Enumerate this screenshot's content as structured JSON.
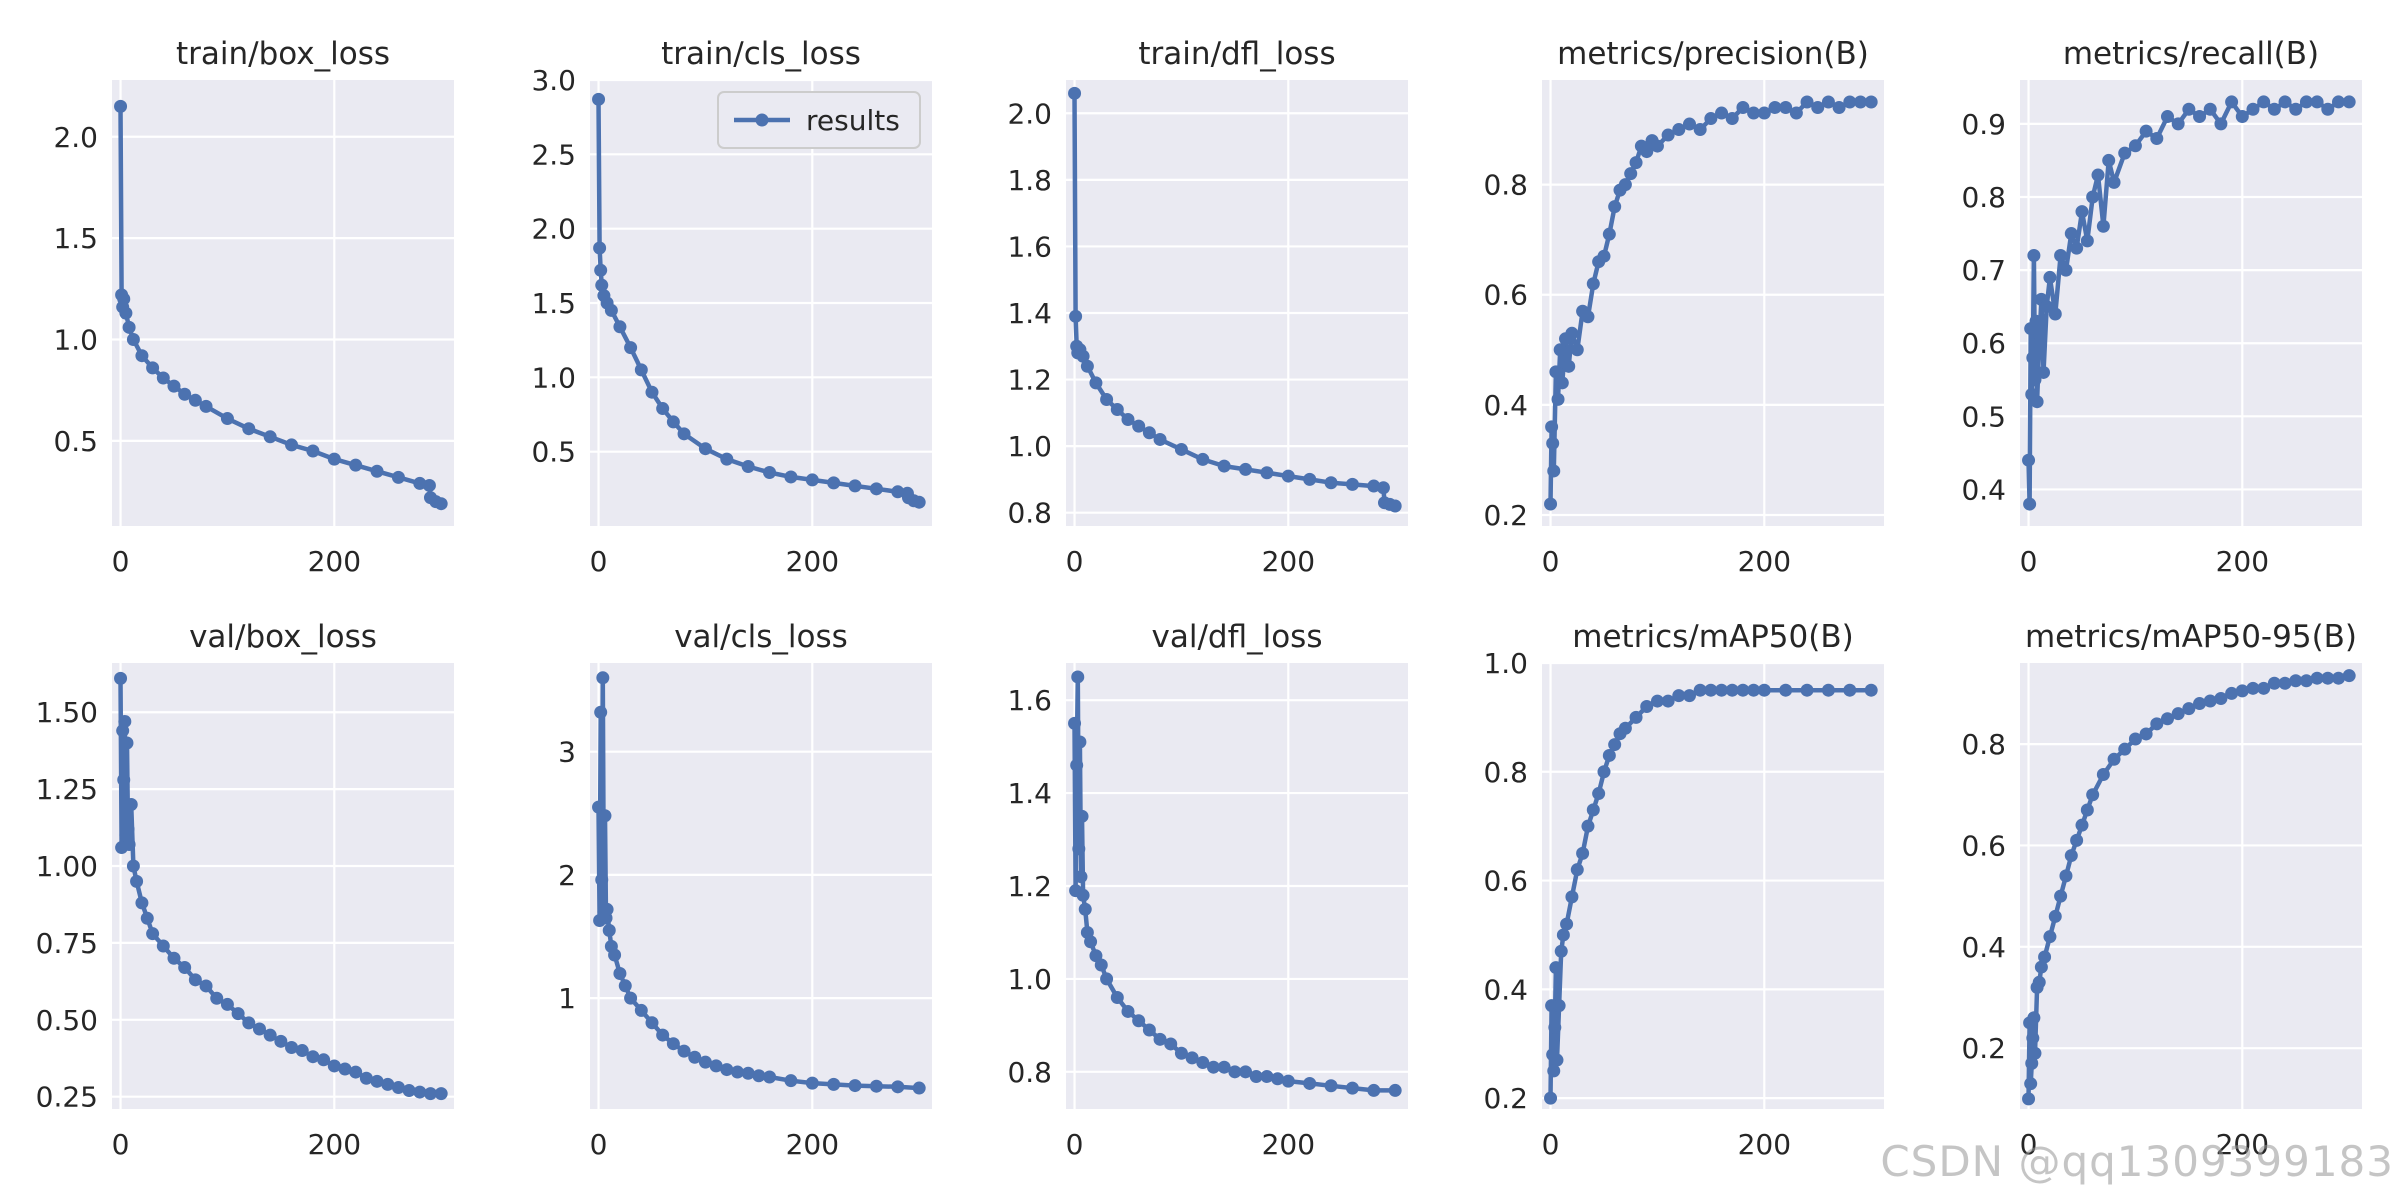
{
  "watermark": "CSDN @qq1309399183",
  "style": {
    "bg": "#EAEAF2",
    "grid": "#FFFFFF",
    "line": "#4C72B0",
    "text": "#262626"
  },
  "chart_data": [
    {
      "type": "line",
      "title": "train/box_loss",
      "legend": "",
      "xlim": [
        -8,
        312
      ],
      "ylim": [
        0.08,
        2.28
      ],
      "xticks": [
        0,
        200
      ],
      "yticks": [
        0.5,
        1.0,
        1.5,
        2.0
      ],
      "ytick_labels": [
        "0.5",
        "1.0",
        "1.5",
        "2.0"
      ],
      "series": [
        {
          "x": [
            0,
            1,
            2,
            3,
            5,
            8,
            12,
            20,
            30,
            40,
            50,
            60,
            70,
            80,
            100,
            120,
            140,
            160,
            180,
            200,
            220,
            240,
            260,
            280,
            289,
            290,
            295,
            300
          ],
          "y": [
            2.15,
            1.22,
            1.16,
            1.2,
            1.13,
            1.06,
            1.0,
            0.92,
            0.86,
            0.81,
            0.77,
            0.73,
            0.7,
            0.67,
            0.61,
            0.56,
            0.52,
            0.48,
            0.45,
            0.41,
            0.38,
            0.35,
            0.32,
            0.29,
            0.28,
            0.22,
            0.2,
            0.19
          ]
        }
      ]
    },
    {
      "type": "line",
      "title": "train/cls_loss",
      "legend": "results",
      "xlim": [
        -8,
        312
      ],
      "ylim": [
        0.0,
        3.0
      ],
      "xticks": [
        0,
        200
      ],
      "yticks": [
        0.5,
        1.0,
        1.5,
        2.0,
        2.5,
        3.0
      ],
      "ytick_labels": [
        "0.5",
        "1.0",
        "1.5",
        "2.0",
        "2.5",
        "3.0"
      ],
      "series": [
        {
          "x": [
            0,
            1,
            2,
            3,
            5,
            8,
            12,
            20,
            30,
            40,
            50,
            60,
            70,
            80,
            100,
            120,
            140,
            160,
            180,
            200,
            220,
            240,
            260,
            280,
            289,
            290,
            295,
            300
          ],
          "y": [
            2.87,
            1.87,
            1.72,
            1.62,
            1.55,
            1.5,
            1.45,
            1.34,
            1.2,
            1.05,
            0.9,
            0.79,
            0.7,
            0.62,
            0.52,
            0.45,
            0.4,
            0.36,
            0.33,
            0.31,
            0.29,
            0.27,
            0.25,
            0.23,
            0.22,
            0.19,
            0.17,
            0.16
          ]
        }
      ]
    },
    {
      "type": "line",
      "title": "train/dfl_loss",
      "legend": "",
      "xlim": [
        -8,
        312
      ],
      "ylim": [
        0.76,
        2.1
      ],
      "xticks": [
        0,
        200
      ],
      "yticks": [
        0.8,
        1.0,
        1.2,
        1.4,
        1.6,
        1.8,
        2.0
      ],
      "ytick_labels": [
        "0.8",
        "1.0",
        "1.2",
        "1.4",
        "1.6",
        "1.8",
        "2.0"
      ],
      "series": [
        {
          "x": [
            0,
            1,
            2,
            3,
            5,
            8,
            12,
            20,
            30,
            40,
            50,
            60,
            70,
            80,
            100,
            120,
            140,
            160,
            180,
            200,
            220,
            240,
            260,
            280,
            289,
            290,
            295,
            300
          ],
          "y": [
            2.06,
            1.39,
            1.3,
            1.28,
            1.29,
            1.27,
            1.24,
            1.19,
            1.14,
            1.11,
            1.08,
            1.06,
            1.04,
            1.02,
            0.99,
            0.96,
            0.94,
            0.93,
            0.92,
            0.91,
            0.9,
            0.89,
            0.885,
            0.88,
            0.875,
            0.83,
            0.825,
            0.82
          ]
        }
      ]
    },
    {
      "type": "line",
      "title": "metrics/precision(B)",
      "legend": "",
      "xlim": [
        -8,
        312
      ],
      "ylim": [
        0.18,
        0.99
      ],
      "xticks": [
        0,
        200
      ],
      "yticks": [
        0.2,
        0.4,
        0.6,
        0.8
      ],
      "ytick_labels": [
        "0.2",
        "0.4",
        "0.6",
        "0.8"
      ],
      "series": [
        {
          "x": [
            0,
            1,
            2,
            3,
            5,
            7,
            9,
            11,
            14,
            17,
            20,
            25,
            30,
            35,
            40,
            45,
            50,
            55,
            60,
            65,
            70,
            75,
            80,
            85,
            90,
            95,
            100,
            110,
            120,
            130,
            140,
            150,
            160,
            170,
            180,
            190,
            200,
            210,
            220,
            230,
            240,
            250,
            260,
            270,
            280,
            290,
            300
          ],
          "y": [
            0.22,
            0.36,
            0.33,
            0.28,
            0.46,
            0.41,
            0.5,
            0.44,
            0.52,
            0.47,
            0.53,
            0.5,
            0.57,
            0.56,
            0.62,
            0.66,
            0.67,
            0.71,
            0.76,
            0.79,
            0.8,
            0.82,
            0.84,
            0.87,
            0.86,
            0.88,
            0.87,
            0.89,
            0.9,
            0.91,
            0.9,
            0.92,
            0.93,
            0.92,
            0.94,
            0.93,
            0.93,
            0.94,
            0.94,
            0.93,
            0.95,
            0.94,
            0.95,
            0.94,
            0.95,
            0.95,
            0.95
          ]
        }
      ]
    },
    {
      "type": "line",
      "title": "metrics/recall(B)",
      "legend": "",
      "xlim": [
        -8,
        312
      ],
      "ylim": [
        0.35,
        0.96
      ],
      "xticks": [
        0,
        200
      ],
      "yticks": [
        0.4,
        0.5,
        0.6,
        0.7,
        0.8,
        0.9
      ],
      "ytick_labels": [
        "0.4",
        "0.5",
        "0.6",
        "0.7",
        "0.8",
        "0.9"
      ],
      "series": [
        {
          "x": [
            0,
            1,
            2,
            3,
            4,
            5,
            6,
            7,
            8,
            10,
            12,
            14,
            17,
            20,
            25,
            30,
            35,
            40,
            45,
            50,
            55,
            60,
            65,
            70,
            75,
            80,
            90,
            100,
            110,
            120,
            130,
            140,
            150,
            160,
            170,
            180,
            190,
            200,
            210,
            220,
            230,
            240,
            250,
            260,
            270,
            280,
            290,
            300
          ],
          "y": [
            0.44,
            0.38,
            0.62,
            0.53,
            0.58,
            0.72,
            0.55,
            0.63,
            0.52,
            0.6,
            0.66,
            0.56,
            0.65,
            0.69,
            0.64,
            0.72,
            0.7,
            0.75,
            0.73,
            0.78,
            0.74,
            0.8,
            0.83,
            0.76,
            0.85,
            0.82,
            0.86,
            0.87,
            0.89,
            0.88,
            0.91,
            0.9,
            0.92,
            0.91,
            0.92,
            0.9,
            0.93,
            0.91,
            0.92,
            0.93,
            0.92,
            0.93,
            0.92,
            0.93,
            0.93,
            0.92,
            0.93,
            0.93
          ]
        }
      ]
    },
    {
      "type": "line",
      "title": "val/box_loss",
      "legend": "",
      "xlim": [
        -8,
        312
      ],
      "ylim": [
        0.21,
        1.66
      ],
      "xticks": [
        0,
        200
      ],
      "yticks": [
        0.25,
        0.5,
        0.75,
        1.0,
        1.25,
        1.5
      ],
      "ytick_labels": [
        "0.25",
        "0.50",
        "0.75",
        "1.00",
        "1.25",
        "1.50"
      ],
      "series": [
        {
          "x": [
            0,
            1,
            2,
            3,
            4,
            5,
            6,
            7,
            8,
            10,
            12,
            15,
            20,
            25,
            30,
            40,
            50,
            60,
            70,
            80,
            90,
            100,
            110,
            120,
            130,
            140,
            150,
            160,
            170,
            180,
            190,
            200,
            210,
            220,
            230,
            240,
            250,
            260,
            270,
            280,
            290,
            300
          ],
          "y": [
            1.61,
            1.06,
            1.44,
            1.28,
            1.47,
            1.1,
            1.4,
            1.12,
            1.07,
            1.2,
            1.0,
            0.95,
            0.88,
            0.83,
            0.78,
            0.74,
            0.7,
            0.67,
            0.63,
            0.61,
            0.57,
            0.55,
            0.52,
            0.49,
            0.47,
            0.45,
            0.43,
            0.41,
            0.4,
            0.38,
            0.37,
            0.35,
            0.34,
            0.33,
            0.31,
            0.3,
            0.29,
            0.28,
            0.27,
            0.265,
            0.26,
            0.26
          ]
        }
      ]
    },
    {
      "type": "line",
      "title": "val/cls_loss",
      "legend": "",
      "xlim": [
        -8,
        312
      ],
      "ylim": [
        0.1,
        3.72
      ],
      "xticks": [
        0,
        200
      ],
      "yticks": [
        1,
        2,
        3
      ],
      "ytick_labels": [
        "1",
        "2",
        "3"
      ],
      "series": [
        {
          "x": [
            0,
            1,
            2,
            3,
            4,
            5,
            6,
            7,
            8,
            10,
            12,
            15,
            20,
            25,
            30,
            40,
            50,
            60,
            70,
            80,
            90,
            100,
            110,
            120,
            130,
            140,
            150,
            160,
            180,
            200,
            220,
            240,
            260,
            280,
            300
          ],
          "y": [
            2.55,
            1.63,
            3.32,
            1.96,
            3.6,
            1.7,
            2.48,
            1.65,
            1.72,
            1.55,
            1.42,
            1.35,
            1.2,
            1.1,
            1.0,
            0.9,
            0.8,
            0.7,
            0.63,
            0.57,
            0.52,
            0.48,
            0.45,
            0.42,
            0.4,
            0.39,
            0.37,
            0.36,
            0.33,
            0.31,
            0.3,
            0.29,
            0.285,
            0.28,
            0.27
          ]
        }
      ]
    },
    {
      "type": "line",
      "title": "val/dfl_loss",
      "legend": "",
      "xlim": [
        -8,
        312
      ],
      "ylim": [
        0.72,
        1.68
      ],
      "xticks": [
        0,
        200
      ],
      "yticks": [
        0.8,
        1.0,
        1.2,
        1.4,
        1.6
      ],
      "ytick_labels": [
        "0.8",
        "1.0",
        "1.2",
        "1.4",
        "1.6"
      ],
      "series": [
        {
          "x": [
            0,
            1,
            2,
            3,
            4,
            5,
            6,
            7,
            8,
            10,
            12,
            15,
            20,
            25,
            30,
            40,
            50,
            60,
            70,
            80,
            90,
            100,
            110,
            120,
            130,
            140,
            150,
            160,
            170,
            180,
            190,
            200,
            220,
            240,
            260,
            280,
            300
          ],
          "y": [
            1.55,
            1.19,
            1.46,
            1.65,
            1.28,
            1.51,
            1.22,
            1.35,
            1.18,
            1.15,
            1.1,
            1.08,
            1.05,
            1.03,
            1.0,
            0.96,
            0.93,
            0.91,
            0.89,
            0.87,
            0.86,
            0.84,
            0.83,
            0.82,
            0.81,
            0.81,
            0.8,
            0.8,
            0.79,
            0.79,
            0.785,
            0.78,
            0.775,
            0.77,
            0.765,
            0.76,
            0.76
          ]
        }
      ]
    },
    {
      "type": "line",
      "title": "metrics/mAP50(B)",
      "legend": "",
      "xlim": [
        -8,
        312
      ],
      "ylim": [
        0.18,
        1.0
      ],
      "xticks": [
        0,
        200
      ],
      "yticks": [
        0.2,
        0.4,
        0.6,
        0.8,
        1.0
      ],
      "ytick_labels": [
        "0.2",
        "0.4",
        "0.6",
        "0.8",
        "1.0"
      ],
      "series": [
        {
          "x": [
            0,
            1,
            2,
            3,
            4,
            5,
            6,
            8,
            10,
            12,
            15,
            20,
            25,
            30,
            35,
            40,
            45,
            50,
            55,
            60,
            65,
            70,
            80,
            90,
            100,
            110,
            120,
            130,
            140,
            150,
            160,
            170,
            180,
            190,
            200,
            220,
            240,
            260,
            280,
            300
          ],
          "y": [
            0.2,
            0.37,
            0.28,
            0.25,
            0.33,
            0.44,
            0.27,
            0.37,
            0.47,
            0.5,
            0.52,
            0.57,
            0.62,
            0.65,
            0.7,
            0.73,
            0.76,
            0.8,
            0.83,
            0.85,
            0.87,
            0.88,
            0.9,
            0.92,
            0.93,
            0.93,
            0.94,
            0.94,
            0.95,
            0.95,
            0.95,
            0.95,
            0.95,
            0.95,
            0.95,
            0.95,
            0.95,
            0.95,
            0.95,
            0.95
          ]
        }
      ]
    },
    {
      "type": "line",
      "title": "metrics/mAP50-95(B)",
      "legend": "",
      "xlim": [
        -8,
        312
      ],
      "ylim": [
        0.08,
        0.96
      ],
      "xticks": [
        0,
        200
      ],
      "yticks": [
        0.2,
        0.4,
        0.6,
        0.8
      ],
      "ytick_labels": [
        "0.2",
        "0.4",
        "0.6",
        "0.8"
      ],
      "series": [
        {
          "x": [
            0,
            1,
            2,
            3,
            4,
            5,
            6,
            8,
            10,
            12,
            15,
            20,
            25,
            30,
            35,
            40,
            45,
            50,
            55,
            60,
            70,
            80,
            90,
            100,
            110,
            120,
            130,
            140,
            150,
            160,
            170,
            180,
            190,
            200,
            210,
            220,
            230,
            240,
            250,
            260,
            270,
            280,
            290,
            300
          ],
          "y": [
            0.1,
            0.25,
            0.13,
            0.17,
            0.22,
            0.26,
            0.19,
            0.32,
            0.33,
            0.36,
            0.38,
            0.42,
            0.46,
            0.5,
            0.54,
            0.58,
            0.61,
            0.64,
            0.67,
            0.7,
            0.74,
            0.77,
            0.79,
            0.81,
            0.82,
            0.84,
            0.85,
            0.86,
            0.87,
            0.88,
            0.885,
            0.89,
            0.9,
            0.905,
            0.91,
            0.91,
            0.92,
            0.92,
            0.925,
            0.925,
            0.93,
            0.93,
            0.93,
            0.935
          ]
        }
      ]
    }
  ]
}
